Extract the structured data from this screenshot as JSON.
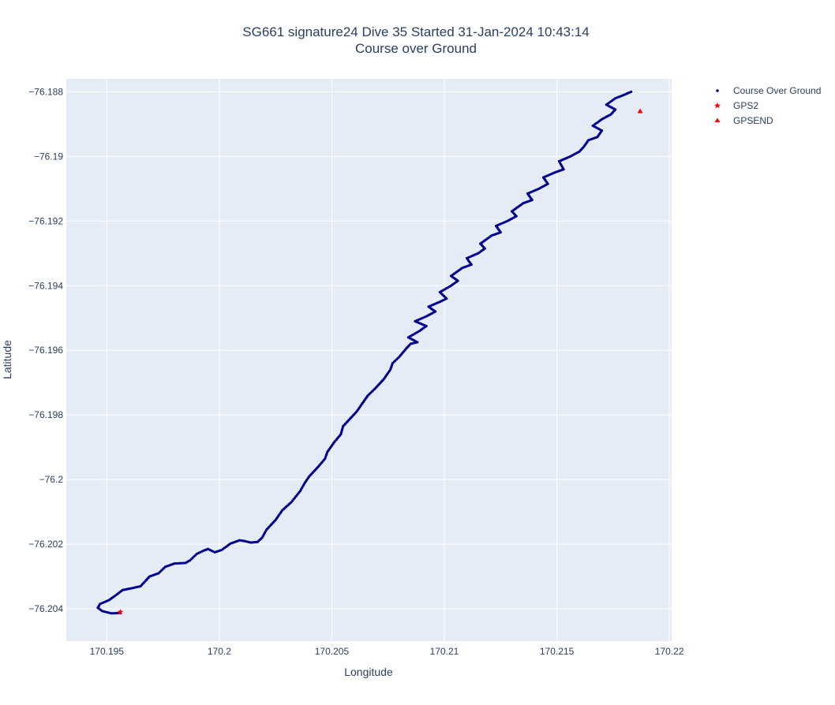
{
  "chart_data": {
    "type": "scatter",
    "title": "SG661 signature24 Dive 35 Started 31-Jan-2024 10:43:14",
    "subtitle": "Course over Ground",
    "xlabel": "Longitude",
    "ylabel": "Latitude",
    "xlim": [
      170.1932,
      170.2201
    ],
    "ylim": [
      -76.205,
      -76.1876
    ],
    "xticks": [
      170.195,
      170.2,
      170.205,
      170.21,
      170.215,
      170.22
    ],
    "xtick_labels": [
      "170.195",
      "170.2",
      "170.205",
      "170.21",
      "170.215",
      "170.22"
    ],
    "yticks": [
      -76.188,
      -76.19,
      -76.192,
      -76.194,
      -76.196,
      -76.198,
      -76.2,
      -76.202,
      -76.204
    ],
    "ytick_labels": [
      "−76.188",
      "−76.19",
      "−76.192",
      "−76.194",
      "−76.196",
      "−76.198",
      "−76.2",
      "−76.202",
      "−76.204"
    ],
    "grid": true,
    "legend_position": "top-right",
    "series": [
      {
        "name": "Course Over Ground",
        "marker": "dot",
        "color": "#00008b",
        "points": [
          [
            170.1956,
            -76.20413
          ],
          [
            170.1952,
            -76.20414
          ],
          [
            170.1948,
            -76.20407
          ],
          [
            170.1946,
            -76.20397
          ],
          [
            170.1947,
            -76.20385
          ],
          [
            170.1951,
            -76.20373
          ],
          [
            170.1954,
            -76.20358
          ],
          [
            170.1957,
            -76.20342
          ],
          [
            170.1962,
            -76.20335
          ],
          [
            170.1965,
            -76.2033
          ],
          [
            170.1969,
            -76.203
          ],
          [
            170.1973,
            -76.2029
          ],
          [
            170.1976,
            -76.2027
          ],
          [
            170.198,
            -76.2026
          ],
          [
            170.1985,
            -76.20258
          ],
          [
            170.1987,
            -76.2025
          ],
          [
            170.199,
            -76.2023
          ],
          [
            170.1993,
            -76.2022
          ],
          [
            170.1995,
            -76.20215
          ],
          [
            170.1998,
            -76.20225
          ],
          [
            170.2001,
            -76.20218
          ],
          [
            170.2005,
            -76.20198
          ],
          [
            170.2009,
            -76.20188
          ],
          [
            170.2011,
            -76.2019
          ],
          [
            170.2014,
            -76.20195
          ],
          [
            170.2017,
            -76.20193
          ],
          [
            170.2019,
            -76.2018
          ],
          [
            170.2021,
            -76.20155
          ],
          [
            170.2025,
            -76.20125
          ],
          [
            170.2028,
            -76.20095
          ],
          [
            170.2032,
            -76.2007
          ],
          [
            170.2036,
            -76.20035
          ],
          [
            170.2038,
            -76.2001
          ],
          [
            170.204,
            -76.1999
          ],
          [
            170.2044,
            -76.1996
          ],
          [
            170.2047,
            -76.19935
          ],
          [
            170.2048,
            -76.19915
          ],
          [
            170.2051,
            -76.19885
          ],
          [
            170.2054,
            -76.1986
          ],
          [
            170.2055,
            -76.19835
          ],
          [
            170.2057,
            -76.1982
          ],
          [
            170.2061,
            -76.1979
          ],
          [
            170.2064,
            -76.1976
          ],
          [
            170.2066,
            -76.1974
          ],
          [
            170.2069,
            -76.1972
          ],
          [
            170.2073,
            -76.1969
          ],
          [
            170.2076,
            -76.1966
          ],
          [
            170.2077,
            -76.1964
          ],
          [
            170.208,
            -76.1962
          ],
          [
            170.2083,
            -76.19595
          ],
          [
            170.2085,
            -76.1958
          ],
          [
            170.2088,
            -76.19575
          ],
          [
            170.2084,
            -76.1956
          ],
          [
            170.2089,
            -76.1954
          ],
          [
            170.2092,
            -76.19525
          ],
          [
            170.2087,
            -76.1951
          ],
          [
            170.2092,
            -76.19495
          ],
          [
            170.2096,
            -76.1948
          ],
          [
            170.2093,
            -76.19465
          ],
          [
            170.2098,
            -76.1945
          ],
          [
            170.2101,
            -76.1944
          ],
          [
            170.2098,
            -76.1942
          ],
          [
            170.2103,
            -76.194
          ],
          [
            170.2106,
            -76.19385
          ],
          [
            170.2103,
            -76.1937
          ],
          [
            170.2108,
            -76.19345
          ],
          [
            170.2112,
            -76.19335
          ],
          [
            170.211,
            -76.19315
          ],
          [
            170.2115,
            -76.193
          ],
          [
            170.2118,
            -76.19285
          ],
          [
            170.2116,
            -76.1927
          ],
          [
            170.2121,
            -76.19245
          ],
          [
            170.2125,
            -76.19235
          ],
          [
            170.2123,
            -76.19215
          ],
          [
            170.2128,
            -76.192
          ],
          [
            170.2132,
            -76.19185
          ],
          [
            170.213,
            -76.1917
          ],
          [
            170.2135,
            -76.19145
          ],
          [
            170.2139,
            -76.19135
          ],
          [
            170.2137,
            -76.19115
          ],
          [
            170.2142,
            -76.191
          ],
          [
            170.2146,
            -76.19085
          ],
          [
            170.2144,
            -76.19065
          ],
          [
            170.2149,
            -76.1905
          ],
          [
            170.2153,
            -76.1904
          ],
          [
            170.2151,
            -76.19015
          ],
          [
            170.2156,
            -76.19
          ],
          [
            170.216,
            -76.18985
          ],
          [
            170.2162,
            -76.1897
          ],
          [
            170.2164,
            -76.1895
          ],
          [
            170.2168,
            -76.1894
          ],
          [
            170.217,
            -76.1892
          ],
          [
            170.2166,
            -76.18905
          ],
          [
            170.217,
            -76.18885
          ],
          [
            170.2174,
            -76.1887
          ],
          [
            170.2176,
            -76.18855
          ],
          [
            170.2172,
            -76.1884
          ],
          [
            170.2176,
            -76.1882
          ],
          [
            170.2179,
            -76.18812
          ],
          [
            170.2183,
            -76.188
          ]
        ]
      },
      {
        "name": "GPS2",
        "marker": "star",
        "color": "#ff0000",
        "points": [
          [
            170.1956,
            -76.2041
          ]
        ]
      },
      {
        "name": "GPSEND",
        "marker": "triangle-up",
        "color": "#ff0000",
        "points": [
          [
            170.2187,
            -76.1886
          ]
        ]
      }
    ]
  }
}
